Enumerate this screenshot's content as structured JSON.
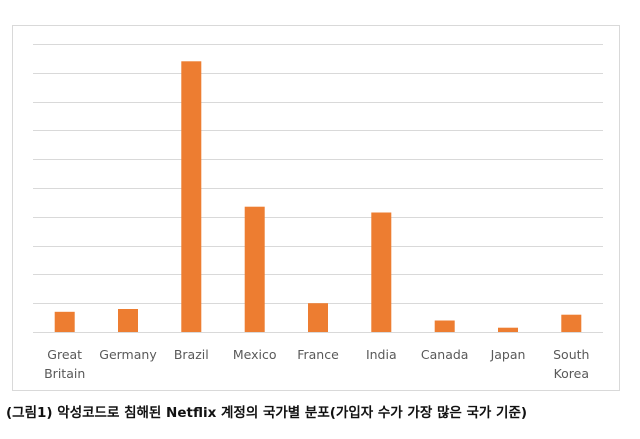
{
  "caption": "(그림1) 악성코드로 침해된 Netflix 계정의 국가별 분포(가입자 수가 가장 많은 국가 기준)",
  "colors": {
    "bar": "#ed7d31",
    "grid": "#d9d9d9",
    "label": "#595959",
    "border": "#d9d9d9"
  },
  "chart_data": {
    "type": "bar",
    "categories": [
      "Great Britain",
      "Germany",
      "Brazil",
      "Mexico",
      "France",
      "India",
      "Canada",
      "Japan",
      "South Korea"
    ],
    "category_lines": [
      [
        "Great",
        "Britain"
      ],
      [
        "Germany"
      ],
      [
        "Brazil"
      ],
      [
        "Mexico"
      ],
      [
        "France"
      ],
      [
        "India"
      ],
      [
        "Canada"
      ],
      [
        "Japan"
      ],
      [
        "South",
        "Korea"
      ]
    ],
    "values": [
      0.7,
      0.8,
      9.4,
      4.35,
      1.0,
      4.15,
      0.4,
      0.15,
      0.6
    ],
    "ylim": [
      0,
      10
    ],
    "y_gridlines": 10,
    "grid": true,
    "y_tick_labels_shown": false,
    "title": "",
    "xlabel": "",
    "ylabel": ""
  }
}
